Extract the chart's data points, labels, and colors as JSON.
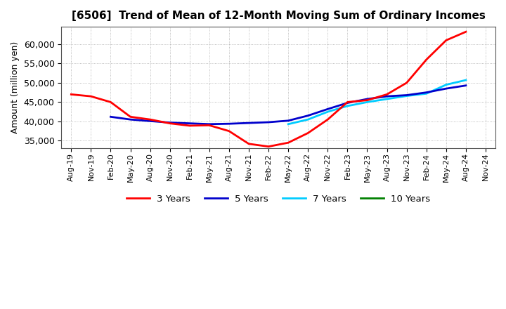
{
  "title": "[6506]  Trend of Mean of 12-Month Moving Sum of Ordinary Incomes",
  "ylabel": "Amount (million yen)",
  "background_color": "#ffffff",
  "grid_color": "#aaaaaa",
  "yticks": [
    35000,
    40000,
    45000,
    50000,
    55000,
    60000
  ],
  "ylim": [
    33000,
    64500
  ],
  "x_labels": [
    "Aug-19",
    "Nov-19",
    "Feb-20",
    "May-20",
    "Aug-20",
    "Nov-20",
    "Feb-21",
    "May-21",
    "Aug-21",
    "Nov-21",
    "Feb-22",
    "May-22",
    "Aug-22",
    "Nov-22",
    "Feb-23",
    "May-23",
    "Aug-23",
    "Nov-23",
    "Feb-24",
    "May-24",
    "Aug-24",
    "Nov-24"
  ],
  "series_3y_x": [
    0,
    1,
    2,
    3,
    4,
    5,
    6,
    7,
    8,
    9,
    10,
    11,
    12,
    13,
    14,
    15,
    16,
    17,
    18,
    19,
    20
  ],
  "series_3y_y": [
    47000,
    46500,
    45000,
    41200,
    40500,
    39500,
    38900,
    39000,
    37500,
    34200,
    33500,
    34500,
    37000,
    40500,
    45000,
    45500,
    47000,
    50000,
    56000,
    61000,
    63200
  ],
  "series_5y_x": [
    2,
    3,
    4,
    5,
    6,
    7,
    8,
    9,
    10,
    11,
    12,
    13,
    14,
    15,
    16,
    17,
    18,
    19,
    20
  ],
  "series_5y_y": [
    41200,
    40500,
    40100,
    39700,
    39500,
    39300,
    39400,
    39600,
    39800,
    40200,
    41500,
    43200,
    44800,
    45800,
    46500,
    46800,
    47500,
    48500,
    49300
  ],
  "series_7y_x": [
    11,
    12,
    13,
    14,
    15,
    16,
    17,
    18,
    19,
    20
  ],
  "series_7y_y": [
    39300,
    40500,
    42500,
    44000,
    45000,
    45800,
    46600,
    47200,
    49500,
    50700
  ],
  "series_10y_x": [],
  "series_10y_y": [],
  "color_3y": "#ff0000",
  "color_5y": "#0000cc",
  "color_7y": "#00ccff",
  "color_10y": "#008000",
  "legend_labels": [
    "3 Years",
    "5 Years",
    "7 Years",
    "10 Years"
  ]
}
